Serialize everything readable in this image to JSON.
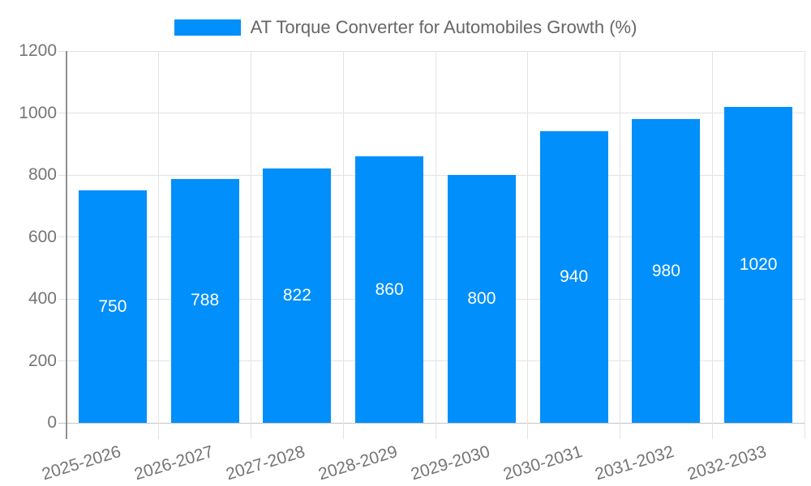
{
  "chart_data": {
    "type": "bar",
    "title": "AT Torque Converter for Automobiles Growth (%)",
    "legend": {
      "position": "top",
      "entries": [
        {
          "label": "AT Torque Converter for Automobiles Growth (%)",
          "color": "#008FFB"
        }
      ]
    },
    "categories": [
      "2025-2026",
      "2026-2027",
      "2027-2028",
      "2028-2029",
      "2029-2030",
      "2030-2031",
      "2031-2032",
      "2032-2033"
    ],
    "series": [
      {
        "name": "AT Torque Converter for Automobiles Growth (%)",
        "values": [
          750,
          788,
          822,
          860,
          800,
          940,
          980,
          1020
        ]
      }
    ],
    "xlabel": "",
    "ylabel": "",
    "ylim": [
      0,
      1200
    ],
    "yticks": [
      0,
      200,
      400,
      600,
      800,
      1000,
      1200
    ],
    "grid": true,
    "bar_color": "#008FFB",
    "value_label_color": "#FFFFFF",
    "x_tick_rotation_deg": -17
  }
}
